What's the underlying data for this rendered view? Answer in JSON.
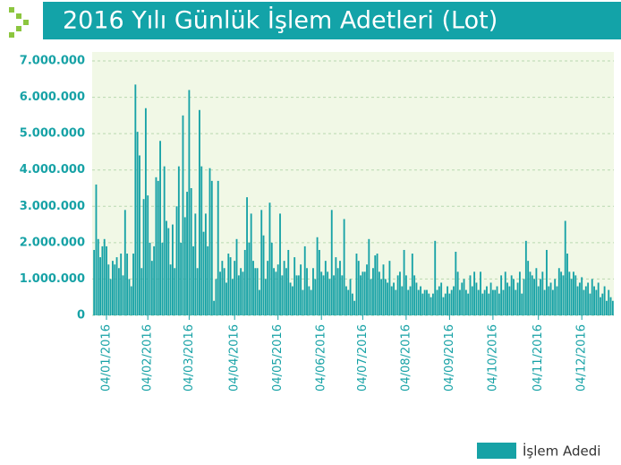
{
  "chart_data": {
    "type": "bar",
    "title": "2016 Yılı Günlük İşlem Adetleri (Lot)",
    "categories": [
      null,
      null,
      null,
      null,
      null,
      null,
      "04/01/2016",
      null,
      null,
      null,
      null,
      null,
      null,
      null,
      null,
      null,
      null,
      null,
      null,
      null,
      null,
      null,
      null,
      null,
      null,
      null,
      "04/02/2016",
      null,
      null,
      null,
      null,
      null,
      null,
      null,
      null,
      null,
      null,
      null,
      null,
      null,
      null,
      null,
      null,
      null,
      null,
      null,
      "04/03/2016",
      null,
      null,
      null,
      null,
      null,
      null,
      null,
      null,
      null,
      null,
      null,
      null,
      null,
      null,
      null,
      null,
      null,
      null,
      null,
      null,
      null,
      "04/04/2016",
      null,
      null,
      null,
      null,
      null,
      null,
      null,
      null,
      null,
      null,
      null,
      null,
      null,
      null,
      null,
      null,
      null,
      null,
      null,
      null,
      "04/05/2016",
      null,
      null,
      null,
      null,
      null,
      null,
      null,
      null,
      null,
      null,
      null,
      null,
      null,
      null,
      null,
      null,
      null,
      null,
      null,
      null,
      "04/06/2016",
      null,
      null,
      null,
      null,
      null,
      null,
      null,
      null,
      null,
      null,
      null,
      null,
      null,
      null,
      null,
      null,
      null,
      null,
      null,
      "04/07/2016",
      null,
      null,
      null,
      null,
      null,
      null,
      null,
      null,
      null,
      null,
      null,
      null,
      null,
      null,
      null,
      null,
      null,
      null,
      null,
      null,
      "04/08/2016",
      null,
      null,
      null,
      null,
      null,
      null,
      null,
      null,
      null,
      null,
      null,
      null,
      null,
      null,
      null,
      null,
      null,
      null,
      null,
      null,
      "04/09/2016",
      null,
      null,
      null,
      null,
      null,
      null,
      null,
      null,
      null,
      null,
      null,
      null,
      null,
      null,
      null,
      null,
      null,
      null,
      null,
      null,
      "04/10/2016",
      null,
      null,
      null,
      null,
      null,
      null,
      null,
      null,
      null,
      null,
      null,
      null,
      null,
      null,
      null,
      null,
      null,
      null,
      null,
      null,
      null,
      "04/11/2016",
      null,
      null,
      null,
      null,
      null,
      null,
      null,
      null,
      null,
      null,
      null,
      null,
      null,
      null,
      null,
      null,
      null,
      null,
      null,
      null,
      "04/12/2016",
      null,
      null,
      null,
      null,
      null,
      null,
      null,
      null,
      null,
      null,
      null,
      null,
      null,
      null,
      null
    ],
    "series": [
      {
        "name": "İşlem Adedi",
        "color": "#17a2a6",
        "values": [
          1800000,
          3600000,
          2100000,
          1600000,
          1900000,
          2100000,
          1900000,
          1400000,
          1000000,
          1500000,
          1400000,
          1600000,
          1300000,
          1700000,
          1100000,
          2900000,
          1700000,
          1000000,
          800000,
          1700000,
          6350000,
          5050000,
          4400000,
          1300000,
          3200000,
          5700000,
          3300000,
          2000000,
          1500000,
          1900000,
          3800000,
          3700000,
          4800000,
          2000000,
          4100000,
          2600000,
          2400000,
          1400000,
          2500000,
          1300000,
          3000000,
          4100000,
          2000000,
          5500000,
          2700000,
          3400000,
          6200000,
          3500000,
          1900000,
          2800000,
          1300000,
          5650000,
          4100000,
          2300000,
          2800000,
          1900000,
          4050000,
          3700000,
          400000,
          1000000,
          3700000,
          1200000,
          1500000,
          1300000,
          900000,
          1700000,
          1600000,
          1000000,
          1500000,
          2100000,
          1100000,
          1300000,
          1200000,
          1800000,
          3250000,
          2000000,
          2800000,
          1500000,
          1300000,
          1300000,
          700000,
          2900000,
          2200000,
          1000000,
          1500000,
          3100000,
          2000000,
          1300000,
          1200000,
          1400000,
          2800000,
          1100000,
          1500000,
          1300000,
          1800000,
          900000,
          800000,
          1600000,
          1100000,
          1100000,
          1400000,
          700000,
          1900000,
          1300000,
          800000,
          700000,
          1300000,
          1000000,
          2150000,
          1800000,
          1200000,
          1100000,
          1500000,
          1200000,
          1000000,
          2900000,
          1100000,
          1600000,
          1300000,
          1500000,
          1100000,
          2650000,
          800000,
          700000,
          1000000,
          600000,
          400000,
          1700000,
          1500000,
          1100000,
          1200000,
          1200000,
          1400000,
          2100000,
          1000000,
          1300000,
          1650000,
          1700000,
          1200000,
          1000000,
          1400000,
          1000000,
          900000,
          1500000,
          800000,
          900000,
          700000,
          1100000,
          1200000,
          800000,
          1800000,
          1100000,
          700000,
          800000,
          1700000,
          1100000,
          900000,
          700000,
          800000,
          600000,
          700000,
          700000,
          600000,
          500000,
          600000,
          2050000,
          700000,
          800000,
          900000,
          500000,
          600000,
          800000,
          600000,
          700000,
          800000,
          1750000,
          1200000,
          700000,
          900000,
          1000000,
          700000,
          600000,
          1100000,
          800000,
          1200000,
          900000,
          700000,
          1200000,
          600000,
          700000,
          800000,
          600000,
          900000,
          700000,
          700000,
          800000,
          600000,
          1100000,
          700000,
          1200000,
          900000,
          800000,
          1100000,
          1000000,
          700000,
          900000,
          1200000,
          600000,
          1000000,
          2050000,
          1500000,
          1200000,
          1100000,
          1000000,
          1300000,
          800000,
          1000000,
          1200000,
          700000,
          1800000,
          800000,
          900000,
          700000,
          1000000,
          800000,
          1300000,
          1200000,
          1100000,
          2600000,
          1700000,
          1200000,
          1000000,
          1200000,
          1100000,
          800000,
          900000,
          1050000,
          700000,
          800000,
          900000,
          600000,
          1000000,
          800000,
          700000,
          900000,
          500000,
          600000,
          800000,
          400000,
          700000,
          500000,
          400000
        ]
      }
    ],
    "ylim": [
      0,
      7000000
    ],
    "yticks": [
      0,
      {
        "value": 1000000,
        "label": "1.000.000"
      },
      {
        "value": 2000000,
        "label": "2.000.000"
      },
      {
        "value": 3000000,
        "label": "3.000.000"
      },
      {
        "value": 4000000,
        "label": "4.000.000"
      },
      {
        "value": 5000000,
        "label": "5.000.000"
      },
      {
        "value": 6000000,
        "label": "6.000.000"
      },
      {
        "value": 7000000,
        "label": "7.000.000"
      }
    ],
    "grid": true,
    "legend": "bottom-right"
  }
}
